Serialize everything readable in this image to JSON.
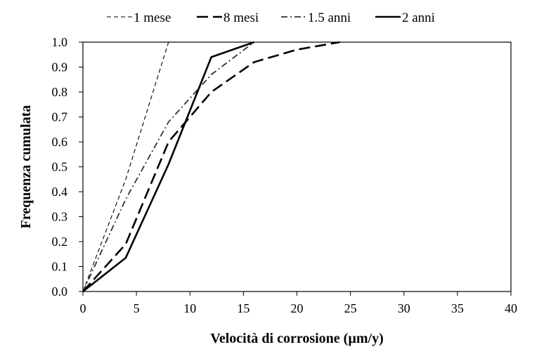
{
  "chart_data": {
    "type": "line",
    "title": "",
    "xlabel": "Velocità di corrosione (µm/y)",
    "ylabel": "Frequenza cumulata",
    "xlim": [
      0,
      40
    ],
    "ylim": [
      0,
      1.0
    ],
    "xticks": [
      "0",
      "5",
      "10",
      "15",
      "20",
      "25",
      "30",
      "35",
      "40"
    ],
    "yticks": [
      "0.0",
      "0.1",
      "0.2",
      "0.3",
      "0.4",
      "0.5",
      "0.6",
      "0.7",
      "0.8",
      "0.9",
      "1.0"
    ],
    "legend_position": "top",
    "series": [
      {
        "name": "1 mese",
        "style": "short-dash-thin",
        "color": "#000000",
        "x": [
          0,
          4,
          8
        ],
        "y": [
          0,
          0.45,
          1.0
        ]
      },
      {
        "name": "8 mesi",
        "style": "long-dash",
        "color": "#000000",
        "x": [
          0,
          4,
          8,
          12,
          16,
          20,
          24
        ],
        "y": [
          0,
          0.19,
          0.6,
          0.8,
          0.92,
          0.97,
          1.0
        ]
      },
      {
        "name": "1.5 anni",
        "style": "dash-dot",
        "color": "#000000",
        "x": [
          0,
          4,
          8,
          12,
          16
        ],
        "y": [
          0,
          0.37,
          0.68,
          0.87,
          1.0
        ]
      },
      {
        "name": "2 anni",
        "style": "solid",
        "color": "#000000",
        "x": [
          0,
          4,
          8,
          12,
          16
        ],
        "y": [
          0,
          0.135,
          0.51,
          0.94,
          1.0
        ]
      }
    ]
  }
}
